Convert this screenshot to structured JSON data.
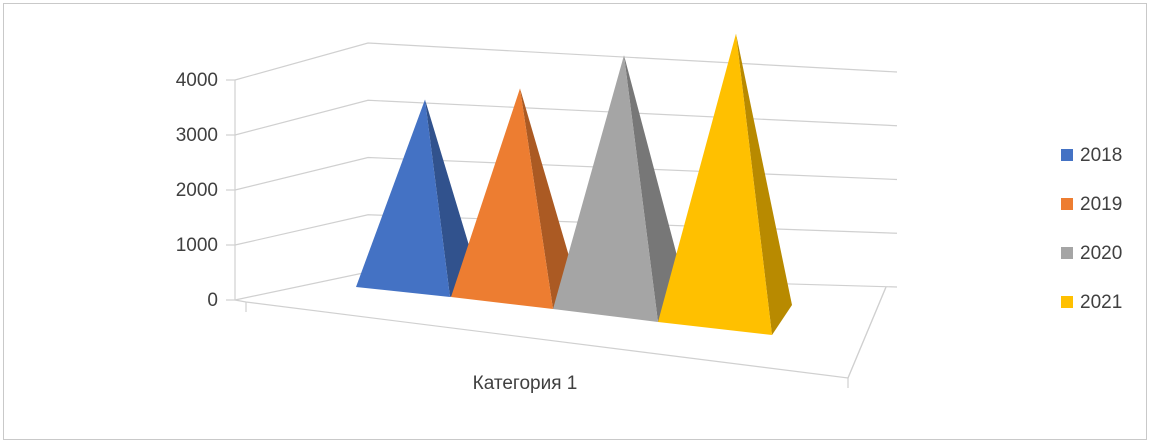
{
  "chart_data": {
    "type": "bar",
    "style": "3d-pyramid",
    "categories": [
      "Категория 1"
    ],
    "series": [
      {
        "name": "2018",
        "values": [
          2900
        ],
        "color": "#4472C4"
      },
      {
        "name": "2019",
        "values": [
          3100
        ],
        "color": "#ED7D31"
      },
      {
        "name": "2020",
        "values": [
          3600
        ],
        "color": "#A5A5A5"
      },
      {
        "name": "2021",
        "values": [
          3900
        ],
        "color": "#FFC000"
      }
    ],
    "y_ticks": [
      "0",
      "1000",
      "2000",
      "3000",
      "4000"
    ],
    "ylim": [
      0,
      4000
    ],
    "grid": true,
    "legend": "right",
    "title": "",
    "xlabel": "",
    "ylabel": ""
  }
}
